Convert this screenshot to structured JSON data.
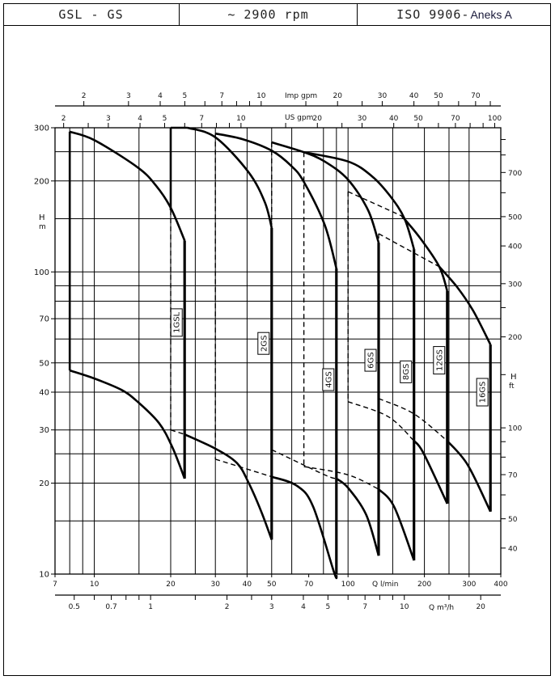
{
  "header": {
    "model": "GSL - GS",
    "speed": "~ 2900 rpm",
    "standard": "ISO 9906-",
    "standard_annex": "Aneks A"
  },
  "chart_data": {
    "type": "line",
    "title": "GSL - GS ~ 2900 rpm",
    "x_axis": {
      "label": "Q l/min",
      "scale": "log",
      "range": [
        7,
        400
      ],
      "tick_labels": [
        7,
        10,
        20,
        30,
        40,
        50,
        70,
        100,
        200,
        300,
        400
      ]
    },
    "y_axis": {
      "label": "H",
      "unit": "m",
      "scale": "log",
      "range": [
        10,
        300
      ],
      "tick_labels": [
        10,
        20,
        30,
        40,
        50,
        70,
        100,
        200,
        300
      ]
    },
    "y2_axis": {
      "label": "H",
      "unit": "ft",
      "factor_per_m": 3.281,
      "ticks": [
        40,
        50,
        60,
        70,
        80,
        90,
        100,
        150,
        200,
        250,
        300,
        400,
        500,
        600,
        700,
        800,
        900
      ],
      "tick_labels": [
        40,
        50,
        70,
        100,
        200,
        300,
        400,
        500,
        700
      ]
    },
    "top_axis_us": {
      "label": "US gpm",
      "lpm_per_unit": 3.785,
      "ticks": [
        2,
        2.5,
        3,
        4,
        5,
        6,
        7,
        8,
        9,
        10,
        15,
        20,
        25,
        30,
        40,
        50,
        60,
        70,
        80,
        90,
        100
      ],
      "tick_labels": [
        2,
        3,
        4,
        5,
        7,
        10,
        20,
        30,
        40,
        50,
        70,
        100
      ]
    },
    "top_axis_imp": {
      "label": "Imp gpm",
      "lpm_per_unit": 4.546,
      "ticks": [
        2,
        3,
        4,
        5,
        6,
        7,
        8,
        9,
        10,
        15,
        20,
        25,
        30,
        40,
        50,
        60,
        70,
        80
      ],
      "tick_labels": [
        2,
        3,
        4,
        5,
        7,
        10,
        20,
        30,
        40,
        50,
        70
      ]
    },
    "bottom_axis_m3h": {
      "label": "Q m³/h",
      "m3h_per_lpm": 0.06,
      "ticks": [
        0.5,
        0.6,
        0.7,
        0.8,
        0.9,
        1,
        1.5,
        2,
        2.5,
        3,
        4,
        5,
        6,
        7,
        8,
        9,
        10,
        15,
        20
      ],
      "tick_labels": [
        "0.5",
        "0.7",
        "1",
        "2",
        "3",
        "4",
        "5",
        "7",
        "10",
        "20"
      ]
    },
    "grid": true,
    "grid_q": [
      8,
      9,
      10,
      15,
      20,
      25,
      30,
      40,
      50,
      60,
      80,
      90,
      100,
      150,
      200,
      250,
      300,
      400
    ],
    "grid_h": [
      15,
      20,
      25,
      30,
      40,
      50,
      60,
      70,
      80,
      90,
      100,
      150,
      200,
      250,
      300
    ],
    "series": [
      {
        "name": "1GSL",
        "label_at": [
          22.7,
          68
        ],
        "segments": [
          {
            "style": "solid",
            "points": [
              [
                8,
                47.2
              ],
              [
                8,
                291
              ]
            ]
          },
          {
            "style": "solid",
            "points": [
              [
                8,
                291
              ],
              [
                10,
                273
              ],
              [
                14.8,
                222
              ],
              [
                17.5,
                193
              ],
              [
                20,
                163
              ],
              [
                22.7,
                127
              ]
            ]
          },
          {
            "style": "bold",
            "points": [
              [
                22.7,
                127
              ],
              [
                22.7,
                20.7
              ]
            ]
          },
          {
            "style": "solid",
            "points": [
              [
                8,
                47.2
              ],
              [
                10,
                44.4
              ],
              [
                12.8,
                40.7
              ],
              [
                14.8,
                37.2
              ],
              [
                18,
                31.6
              ],
              [
                20.3,
                26.3
              ],
              [
                22.7,
                20.7
              ]
            ]
          }
        ]
      },
      {
        "name": "2GS",
        "label_at": [
          50,
          58
        ],
        "segments": [
          {
            "style": "solid",
            "points": [
              [
                20,
                300
              ],
              [
                20,
                160
              ]
            ]
          },
          {
            "style": "dashed",
            "points": [
              [
                20,
                160
              ],
              [
                20,
                30
              ]
            ]
          },
          {
            "style": "solid",
            "points": [
              [
                20,
                300
              ],
              [
                23.3,
                300
              ]
            ]
          },
          {
            "style": "solid",
            "points": [
              [
                23.3,
                300
              ],
              [
                30,
                279
              ],
              [
                40.5,
                214
              ],
              [
                47,
                170
              ],
              [
                50,
                140
              ]
            ]
          },
          {
            "style": "bold",
            "points": [
              [
                50,
                140
              ],
              [
                50,
                13
              ]
            ]
          },
          {
            "style": "dashed",
            "points": [
              [
                20,
                30
              ],
              [
                22.7,
                29
              ]
            ]
          },
          {
            "style": "solid",
            "points": [
              [
                22.7,
                29
              ],
              [
                30,
                26
              ],
              [
                36.5,
                23.3
              ],
              [
                40.5,
                20.1
              ],
              [
                45.5,
                16.1
              ],
              [
                50,
                13
              ]
            ]
          }
        ]
      },
      {
        "name": "4GS",
        "label_at": [
          90,
          44
        ],
        "segments": [
          {
            "style": "dashed",
            "points": [
              [
                30,
                287
              ],
              [
                30,
                24
              ]
            ]
          },
          {
            "style": "solid",
            "points": [
              [
                30,
                287
              ],
              [
                38.4,
                275
              ],
              [
                50,
                252
              ],
              [
                59.7,
                224.5
              ],
              [
                67,
                198.5
              ],
              [
                80.9,
                143.2
              ],
              [
                90,
                102.7
              ]
            ]
          },
          {
            "style": "bold",
            "points": [
              [
                90,
                102.7
              ],
              [
                90,
                10
              ]
            ]
          },
          {
            "style": "dashed",
            "points": [
              [
                30,
                24
              ],
              [
                50,
                21
              ]
            ]
          },
          {
            "style": "solid",
            "points": [
              [
                50,
                21
              ],
              [
                62.9,
                19.6
              ],
              [
                72.9,
                16.7
              ],
              [
                88.2,
                10.1
              ],
              [
                90,
                10
              ]
            ]
          }
        ]
      },
      {
        "name": "6GS",
        "label_at": [
          132,
          51
        ],
        "segments": [
          {
            "style": "dashed",
            "points": [
              [
                50,
                268.5
              ],
              [
                50,
                25.8
              ]
            ]
          },
          {
            "style": "solid",
            "points": [
              [
                50,
                268.5
              ],
              [
                67,
                249
              ],
              [
                80.9,
                232
              ],
              [
                100,
                202
              ],
              [
                120,
                160
              ],
              [
                132,
                125
              ]
            ]
          },
          {
            "style": "bold",
            "points": [
              [
                132,
                125
              ],
              [
                132,
                11.5
              ]
            ]
          },
          {
            "style": "dashed",
            "points": [
              [
                50,
                25.8
              ],
              [
                80.9,
                21.3
              ],
              [
                90,
                20.7
              ]
            ]
          },
          {
            "style": "solid",
            "points": [
              [
                90,
                20.7
              ],
              [
                100,
                19.3
              ],
              [
                118,
                15.7
              ],
              [
                132,
                11.5
              ]
            ]
          }
        ]
      },
      {
        "name": "8GS",
        "label_at": [
          182,
          46.7
        ],
        "segments": [
          {
            "style": "dashed",
            "points": [
              [
                67,
                249
              ],
              [
                67,
                22.7
              ]
            ]
          },
          {
            "style": "solid",
            "points": [
              [
                67,
                249
              ],
              [
                100,
                232
              ],
              [
                124.5,
                207
              ],
              [
                147,
                177.7
              ],
              [
                167,
                150
              ],
              [
                182,
                119
              ]
            ]
          },
          {
            "style": "bold",
            "points": [
              [
                182,
                119
              ],
              [
                182,
                11.1
              ]
            ]
          },
          {
            "style": "dashed",
            "points": [
              [
                67,
                22.7
              ],
              [
                100,
                21.3
              ],
              [
                132,
                19.1
              ]
            ]
          },
          {
            "style": "solid",
            "points": [
              [
                132,
                19.1
              ],
              [
                152,
                16.7
              ],
              [
                182,
                11.1
              ]
            ]
          }
        ]
      },
      {
        "name": "12GS",
        "label_at": [
          246,
          51
        ],
        "segments": [
          {
            "style": "dashed",
            "points": [
              [
                100,
                184.4
              ],
              [
                100,
                37.2
              ]
            ]
          },
          {
            "style": "dashed",
            "points": [
              [
                100,
                184.4
              ],
              [
                163,
                153.2
              ]
            ]
          },
          {
            "style": "solid",
            "points": [
              [
                163,
                153.2
              ],
              [
                193,
                129
              ],
              [
                229,
                104
              ],
              [
                246,
                86.4
              ]
            ]
          },
          {
            "style": "bold",
            "points": [
              [
                246,
                86.4
              ],
              [
                246,
                17.1
              ]
            ]
          },
          {
            "style": "dashed",
            "points": [
              [
                100,
                37.2
              ],
              [
                144,
                33.2
              ],
              [
                182,
                27.6
              ]
            ]
          },
          {
            "style": "solid",
            "points": [
              [
                182,
                27.6
              ],
              [
                198,
                25.2
              ],
              [
                246,
                17.1
              ]
            ]
          }
        ]
      },
      {
        "name": "16GS",
        "label_at": [
          364,
          40
        ],
        "segments": [
          {
            "style": "dashed",
            "points": [
              [
                132,
                133.8
              ],
              [
                132,
                38.1
              ]
            ]
          },
          {
            "style": "dashed",
            "points": [
              [
                132,
                133.8
              ],
              [
                229,
                104
              ]
            ]
          },
          {
            "style": "solid",
            "points": [
              [
                229,
                104
              ],
              [
                269,
                89.1
              ],
              [
                312,
                74.1
              ],
              [
                364,
                57.5
              ]
            ]
          },
          {
            "style": "bold",
            "points": [
              [
                364,
                57.5
              ],
              [
                364,
                16.1
              ]
            ]
          },
          {
            "style": "dashed",
            "points": [
              [
                132,
                38.1
              ],
              [
                182,
                33.9
              ],
              [
                246,
                27.6
              ]
            ]
          },
          {
            "style": "solid",
            "points": [
              [
                246,
                27.6
              ],
              [
                296,
                23
              ],
              [
                364,
                16.1
              ]
            ]
          }
        ]
      }
    ]
  }
}
